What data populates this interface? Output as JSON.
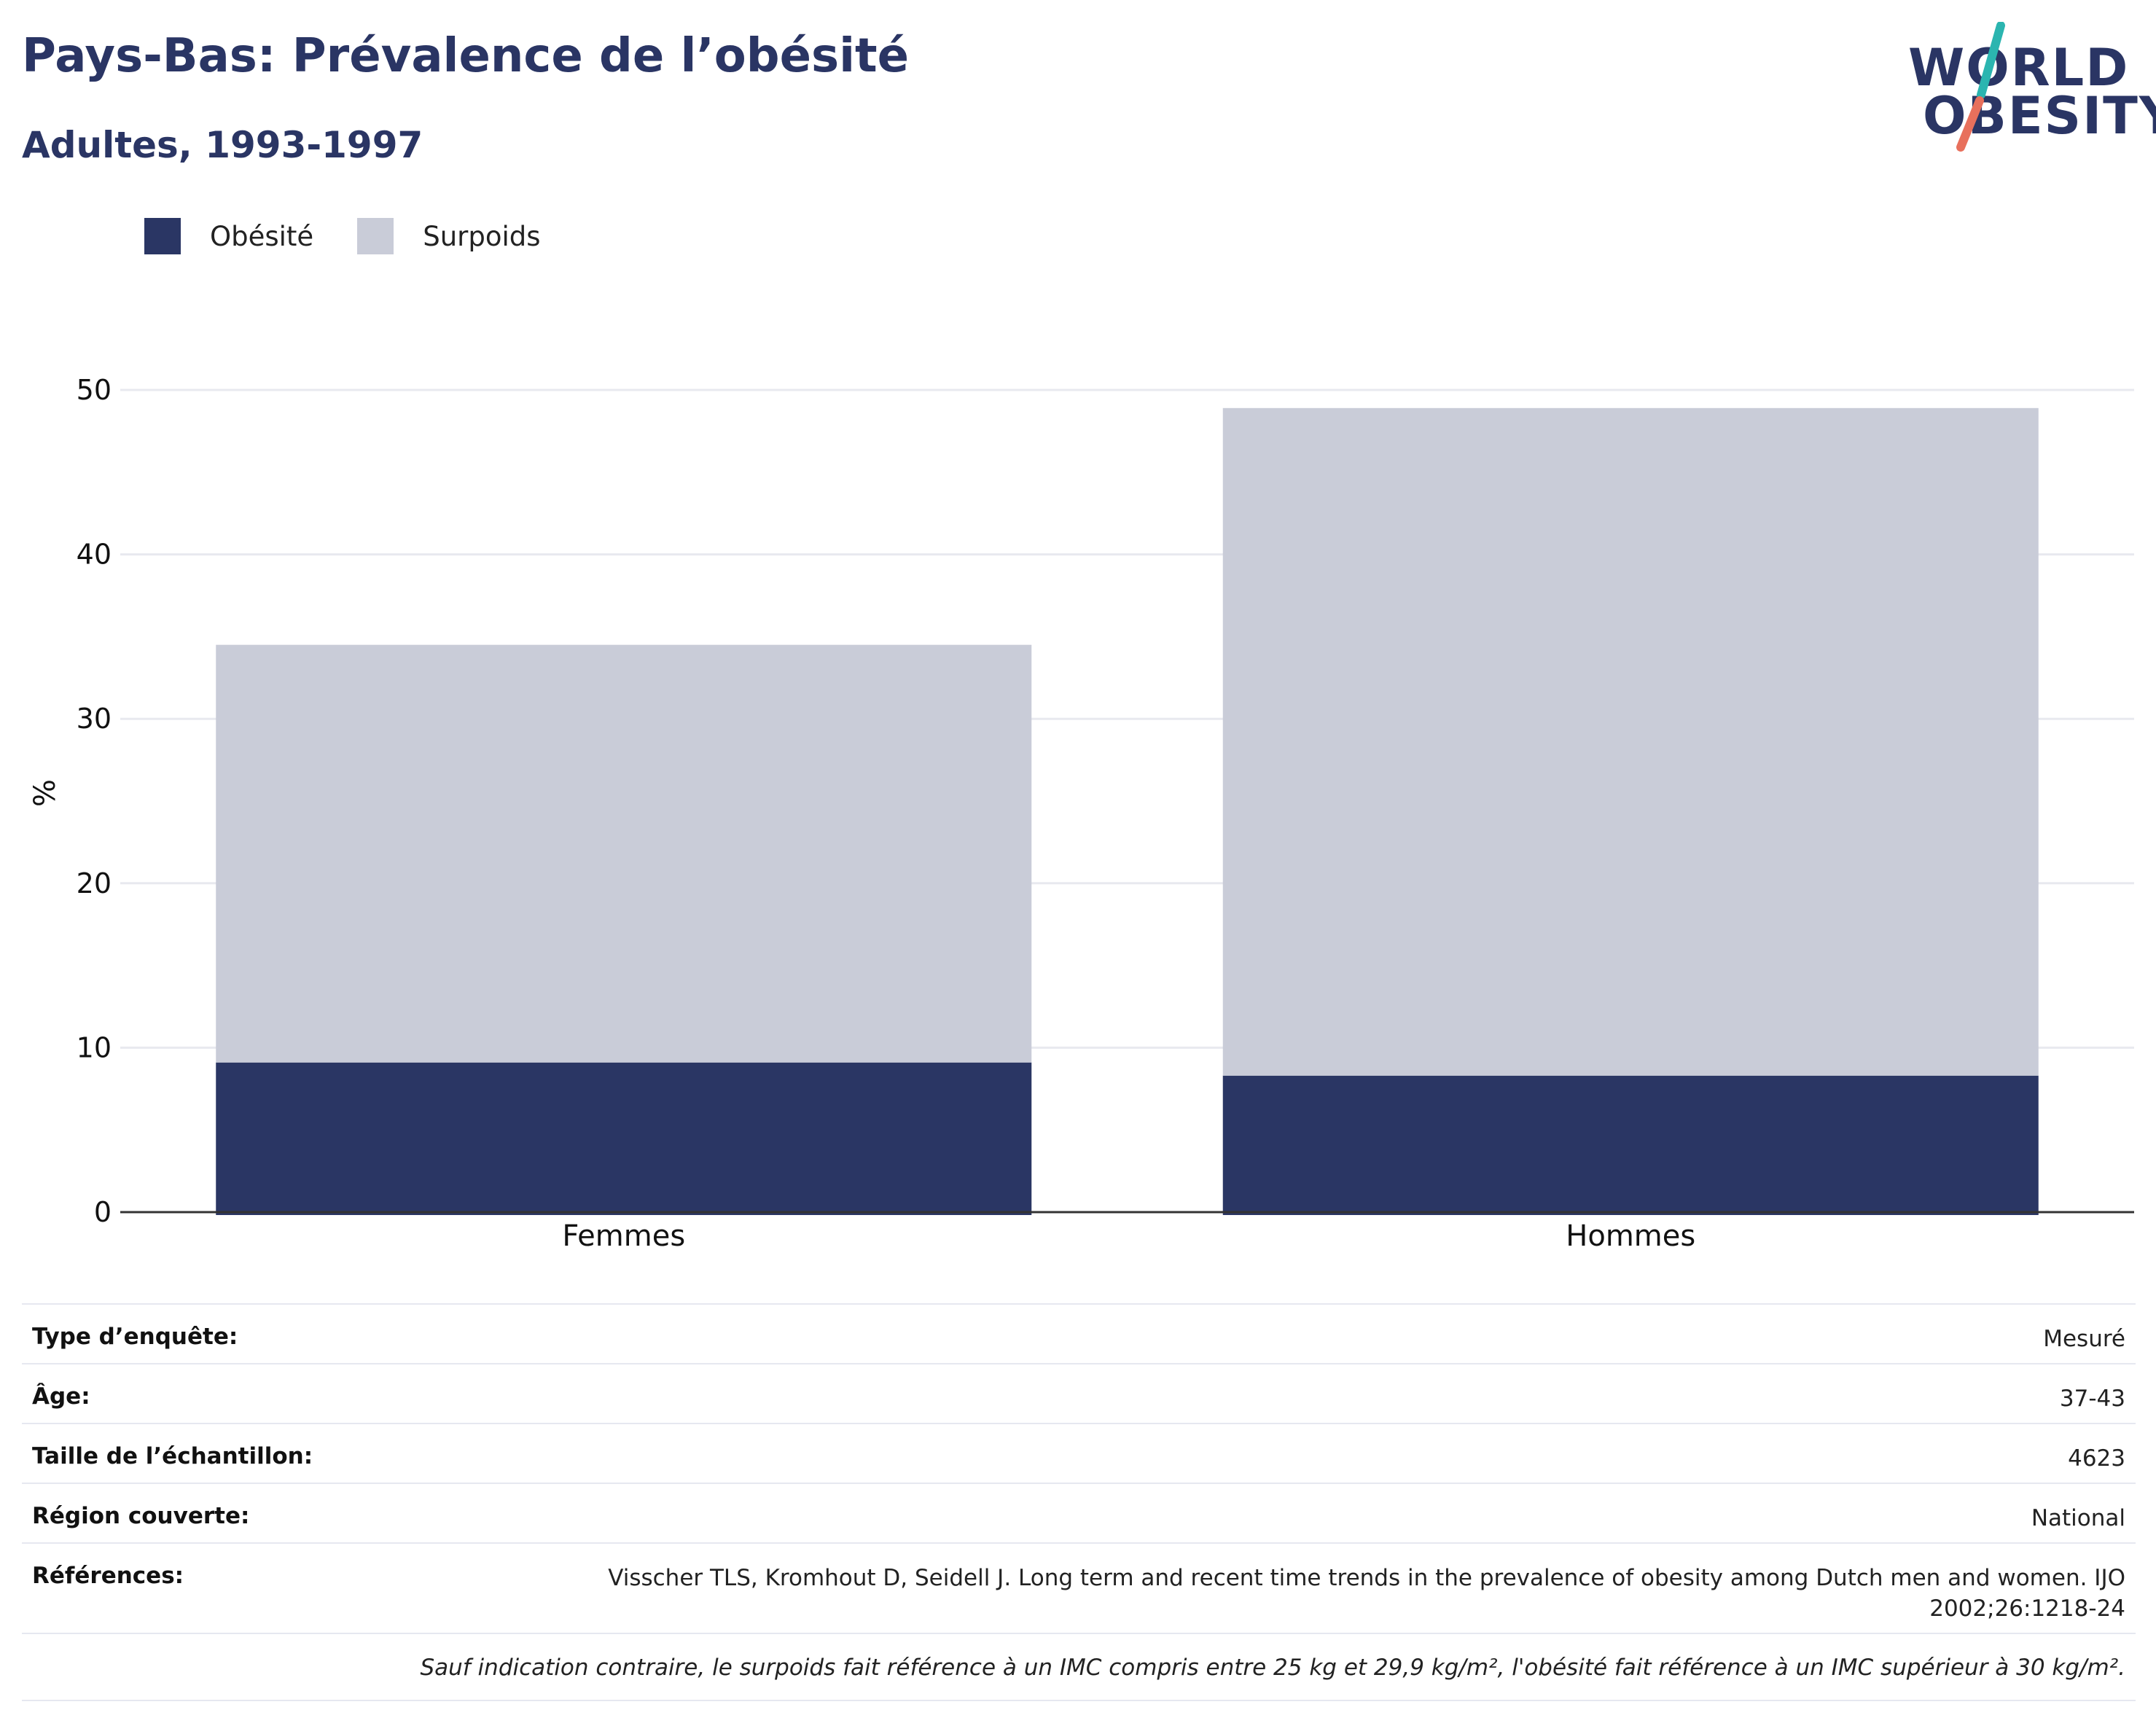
{
  "header": {
    "title": "Pays-Bas: Prévalence de l’obésité",
    "subtitle": "Adultes, 1993-1997"
  },
  "logo": {
    "line1": "WORLD",
    "line2": "OBESITY"
  },
  "colors": {
    "obesity": "#2a3664",
    "overweight": "#c9ccd8",
    "title": "#2a3564",
    "grid": "#e8e9ef",
    "logo_teal": "#2bb5b0",
    "logo_coral": "#e8705c"
  },
  "chart_data": {
    "type": "bar",
    "stacked": true,
    "categories": [
      "Femmes",
      "Hommes"
    ],
    "series": [
      {
        "name": "Obésité",
        "values": [
          9.1,
          8.3
        ]
      },
      {
        "name": "Surpoids",
        "values": [
          25.4,
          40.6
        ]
      }
    ],
    "ylabel": "%",
    "xlabel": "",
    "ylim": [
      0,
      50
    ],
    "yticks": [
      0,
      10,
      20,
      30,
      40,
      50
    ],
    "grid": true,
    "legend": "top-left"
  },
  "info": {
    "rows": [
      {
        "label": "Type d’enquête:",
        "value": "Mesuré"
      },
      {
        "label": "Âge:",
        "value": "37-43"
      },
      {
        "label": "Taille de l’échantillon:",
        "value": "4623"
      },
      {
        "label": "Région couverte:",
        "value": "National"
      },
      {
        "label": "Références:",
        "value": "Visscher TLS, Kromhout D, Seidell J. Long term and recent time trends in the prevalence of obesity among Dutch men and women. IJO 2002;26:1218-24"
      }
    ],
    "footnote": "Sauf indication contraire, le surpoids fait référence à un IMC compris entre 25 kg et 29,9 kg/m², l'obésité fait référence à un IMC supérieur à 30 kg/m²."
  }
}
